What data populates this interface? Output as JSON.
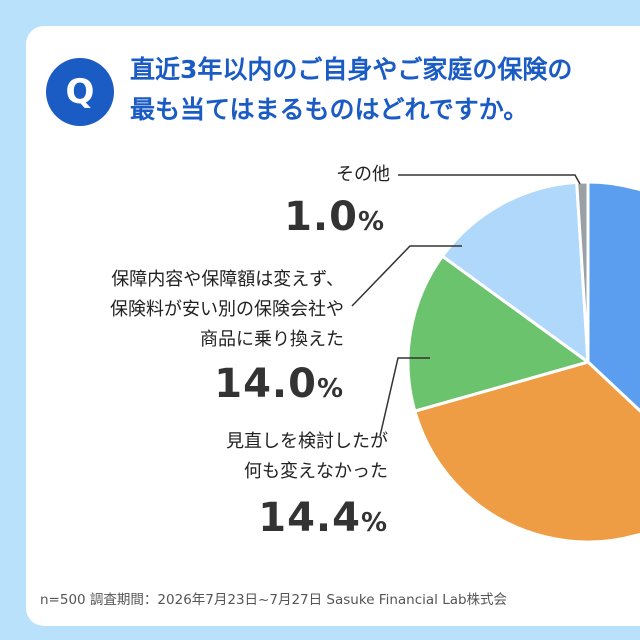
{
  "badge": {
    "label": "Q"
  },
  "question": {
    "line1": "直近3年以内のご自身やご家庭の保険の",
    "line2": "最も当てはまるものはどれですか。"
  },
  "labels": {
    "other": {
      "lines": [
        "その他"
      ],
      "num": "1.0",
      "unit": "%"
    },
    "switched": {
      "lines": [
        "保障内容や保障額は変えず、",
        "保険料が安い別の保険会社や",
        "商品に乗り換えた"
      ],
      "num": "14.0",
      "unit": "%"
    },
    "considered": {
      "lines": [
        "見直しを検討したが",
        "何も変えなかった"
      ],
      "num": "14.4",
      "unit": "%"
    }
  },
  "footer": {
    "text": "n=500 調査期間：2026年7月23日~7月27日 Sasuke Financial Lab株式会"
  },
  "chart_data": {
    "type": "pie",
    "start_angle_deg": 0,
    "direction": "clockwise",
    "slices": [
      {
        "name": "",
        "value": 37.0,
        "color": "#5b9ef0"
      },
      {
        "name": "",
        "value": 33.6,
        "color": "#ee9d45"
      },
      {
        "name": "見直しを検討したが何も変えなかった",
        "value": 14.4,
        "color": "#6cc36d"
      },
      {
        "name": "保障内容や保障額は変えず、保険料が安い別の保険会社や商品に乗り換えた",
        "value": 14.0,
        "color": "#afd8fb"
      },
      {
        "name": "その他",
        "value": 1.0,
        "color": "#9aa0a6"
      }
    ]
  }
}
